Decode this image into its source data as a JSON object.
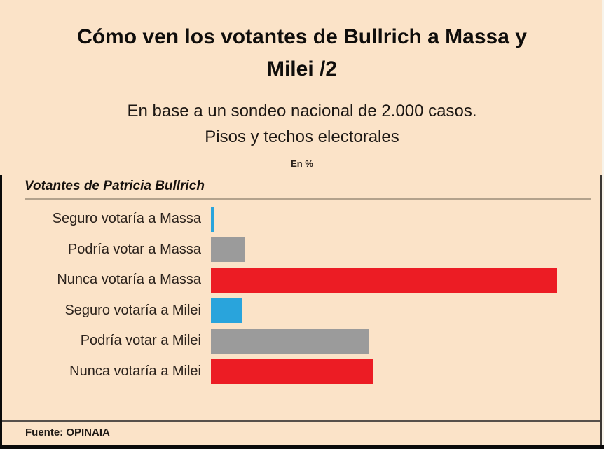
{
  "header": {
    "title_line1": "Cómo ven los votantes de Bullrich a Massa y",
    "title_line2": "Milei /2",
    "subtitle_line1": "En base a un sondeo nacional de 2.000 casos.",
    "subtitle_line2": "Pisos y techos electorales",
    "unit_label": "En %"
  },
  "section": {
    "label": "Votantes de Patricia Bullrich"
  },
  "footer": {
    "source": "Fuente: OPINAIA"
  },
  "colors": {
    "background": "#fbe3c8",
    "bar_blue": "#29a4dc",
    "bar_gray": "#9b9b9b",
    "bar_red": "#ec1c24",
    "section_rule": "#b3a28c",
    "footer_rule": "#56504b",
    "frame_border": "#0a0a0a"
  },
  "chart_data": {
    "type": "bar",
    "orientation": "horizontal",
    "title": "Cómo ven los votantes de Bullrich a Massa y Milei /2",
    "subtitle": "En base a un sondeo nacional de 2.000 casos. Pisos y techos electorales",
    "unit": "En %",
    "group_label": "Votantes de Patricia Bullrich",
    "categories": [
      "Seguro votaría a Massa",
      "Podría votar a Massa",
      "Nunca votaría a Massa",
      "Seguro votaría a Milei",
      "Podría votar a Milei",
      "Nunca votaría a Milei"
    ],
    "values": [
      1,
      9,
      90,
      8,
      41,
      42
    ],
    "bar_colors": [
      "#29a4dc",
      "#9b9b9b",
      "#ec1c24",
      "#29a4dc",
      "#9b9b9b",
      "#ec1c24"
    ],
    "xlim": [
      0,
      100
    ],
    "grid": false,
    "legend": false,
    "value_labels": false,
    "axis_ticks": false,
    "source": "Fuente: OPINAIA"
  }
}
